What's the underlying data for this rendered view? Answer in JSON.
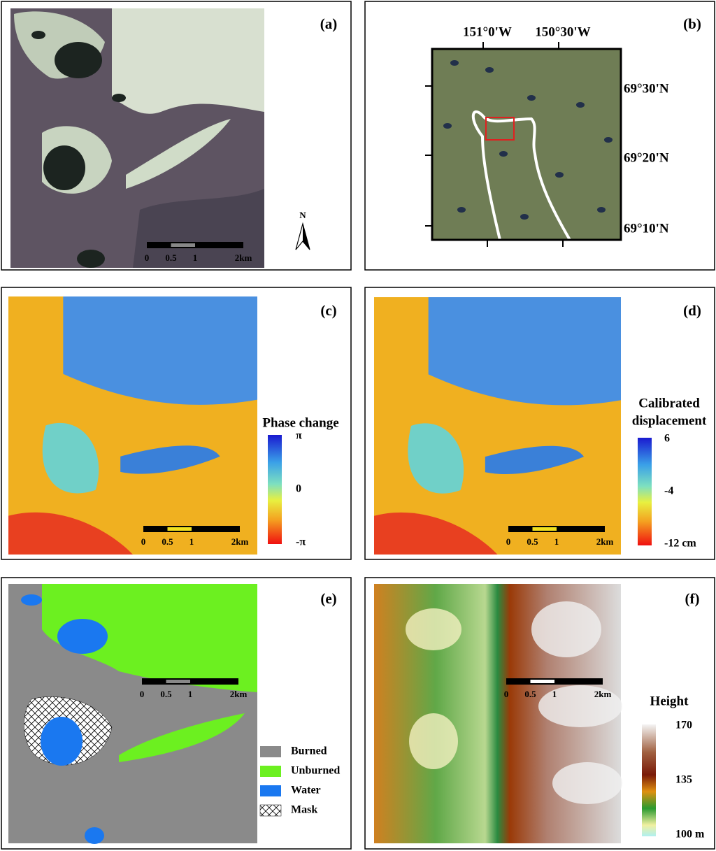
{
  "panels": [
    {
      "label": "(a)",
      "north": "N",
      "scale_bar": [
        "0",
        "0.5",
        "1",
        "2km"
      ]
    },
    {
      "label": "(b)",
      "top_ticks": [
        "151°0'W",
        "150°30'W"
      ],
      "right_ticks": [
        "69°30'N",
        "69°20'N",
        "69°10'N"
      ]
    },
    {
      "label": "(c)",
      "scale_bar": [
        "0",
        "0.5",
        "1",
        "2km"
      ],
      "colorbar": {
        "title": [
          "Phase change"
        ],
        "labels": [
          "π",
          "0",
          "-π"
        ]
      }
    },
    {
      "label": "(d)",
      "scale_bar": [
        "0",
        "0.5",
        "1",
        "2km"
      ],
      "colorbar": {
        "title": [
          "Calibrated",
          "displacement"
        ],
        "labels": [
          "6",
          "-4",
          "-12 cm"
        ]
      }
    },
    {
      "label": "(e)",
      "scale_bar": [
        "0",
        "0.5",
        "1",
        "2km"
      ],
      "legend": [
        "Burned",
        "Unburned",
        "Water",
        "Mask"
      ]
    },
    {
      "label": "(f)",
      "scale_bar": [
        "0",
        "0.5",
        "1",
        "2km"
      ],
      "colorbar": {
        "title": [
          "Height"
        ],
        "labels": [
          "170",
          "135",
          "100 m"
        ]
      }
    }
  ]
}
